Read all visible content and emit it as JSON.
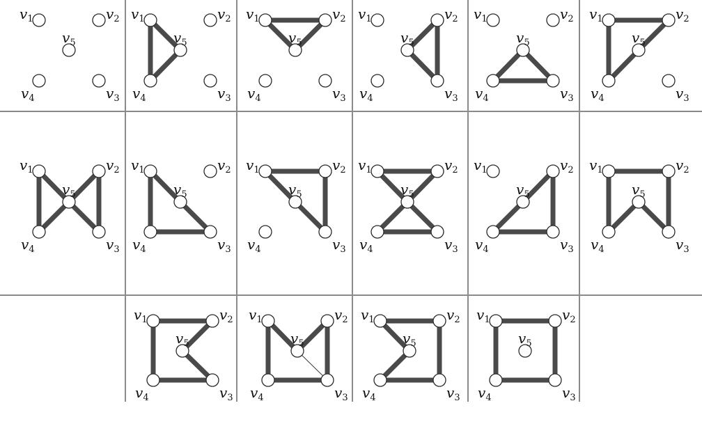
{
  "labels": {
    "v1": {
      "base": "v",
      "sub": "1"
    },
    "v2": {
      "base": "v",
      "sub": "2"
    },
    "v3": {
      "base": "v",
      "sub": "3"
    },
    "v4": {
      "base": "v",
      "sub": "4"
    },
    "v5": {
      "base": "v",
      "sub": "5"
    }
  },
  "panels": [
    {
      "id": "panel-1",
      "edges": []
    },
    {
      "id": "panel-2",
      "edges": [
        [
          "v1",
          "v4"
        ],
        [
          "v1",
          "v5"
        ],
        [
          "v4",
          "v5"
        ]
      ]
    },
    {
      "id": "panel-3",
      "edges": [
        [
          "v1",
          "v2"
        ],
        [
          "v1",
          "v5"
        ],
        [
          "v2",
          "v5"
        ]
      ]
    },
    {
      "id": "panel-4",
      "edges": [
        [
          "v2",
          "v3"
        ],
        [
          "v2",
          "v5"
        ],
        [
          "v3",
          "v5"
        ]
      ]
    },
    {
      "id": "panel-5",
      "edges": [
        [
          "v3",
          "v4"
        ],
        [
          "v3",
          "v5"
        ],
        [
          "v4",
          "v5"
        ]
      ]
    },
    {
      "id": "panel-6",
      "edges": [
        [
          "v1",
          "v2"
        ],
        [
          "v1",
          "v4"
        ],
        [
          "v2",
          "v5"
        ],
        [
          "v4",
          "v5"
        ]
      ]
    },
    {
      "id": "panel-7",
      "edges": [
        [
          "v1",
          "v4"
        ],
        [
          "v1",
          "v5"
        ],
        [
          "v4",
          "v5"
        ],
        [
          "v2",
          "v3"
        ],
        [
          "v2",
          "v5"
        ],
        [
          "v3",
          "v5"
        ]
      ]
    },
    {
      "id": "panel-8",
      "edges": [
        [
          "v1",
          "v4"
        ],
        [
          "v1",
          "v5"
        ],
        [
          "v3",
          "v5"
        ],
        [
          "v3",
          "v4"
        ]
      ]
    },
    {
      "id": "panel-9",
      "edges": [
        [
          "v1",
          "v2"
        ],
        [
          "v1",
          "v5"
        ],
        [
          "v2",
          "v3"
        ],
        [
          "v3",
          "v5"
        ]
      ]
    },
    {
      "id": "panel-10",
      "edges": [
        [
          "v1",
          "v2"
        ],
        [
          "v1",
          "v5"
        ],
        [
          "v2",
          "v5"
        ],
        [
          "v3",
          "v4"
        ],
        [
          "v3",
          "v5"
        ],
        [
          "v4",
          "v5"
        ]
      ]
    },
    {
      "id": "panel-11",
      "edges": [
        [
          "v2",
          "v3"
        ],
        [
          "v2",
          "v5"
        ],
        [
          "v4",
          "v5"
        ],
        [
          "v3",
          "v4"
        ]
      ]
    },
    {
      "id": "panel-12",
      "edges": [
        [
          "v1",
          "v2"
        ],
        [
          "v1",
          "v4"
        ],
        [
          "v2",
          "v3"
        ],
        [
          "v4",
          "v5"
        ],
        [
          "v3",
          "v5"
        ]
      ]
    },
    {
      "id": "panel-13",
      "edges": [
        [
          "v1",
          "v2"
        ],
        [
          "v1",
          "v4"
        ],
        [
          "v2",
          "v5"
        ],
        [
          "v3",
          "v5"
        ],
        [
          "v3",
          "v4"
        ]
      ]
    },
    {
      "id": "panel-14",
      "edges": [
        [
          "v1",
          "v4"
        ],
        [
          "v1",
          "v5"
        ],
        [
          "v2",
          "v5"
        ],
        [
          "v2",
          "v3"
        ],
        [
          "v3",
          "v4"
        ]
      ],
      "thin_edges": [
        [
          "v3",
          "v5"
        ]
      ]
    },
    {
      "id": "panel-15",
      "edges": [
        [
          "v1",
          "v2"
        ],
        [
          "v1",
          "v5"
        ],
        [
          "v2",
          "v3"
        ],
        [
          "v4",
          "v5"
        ],
        [
          "v3",
          "v4"
        ]
      ]
    },
    {
      "id": "panel-16",
      "edges": [
        [
          "v1",
          "v2"
        ],
        [
          "v2",
          "v3"
        ],
        [
          "v3",
          "v4"
        ],
        [
          "v1",
          "v4"
        ]
      ]
    }
  ]
}
